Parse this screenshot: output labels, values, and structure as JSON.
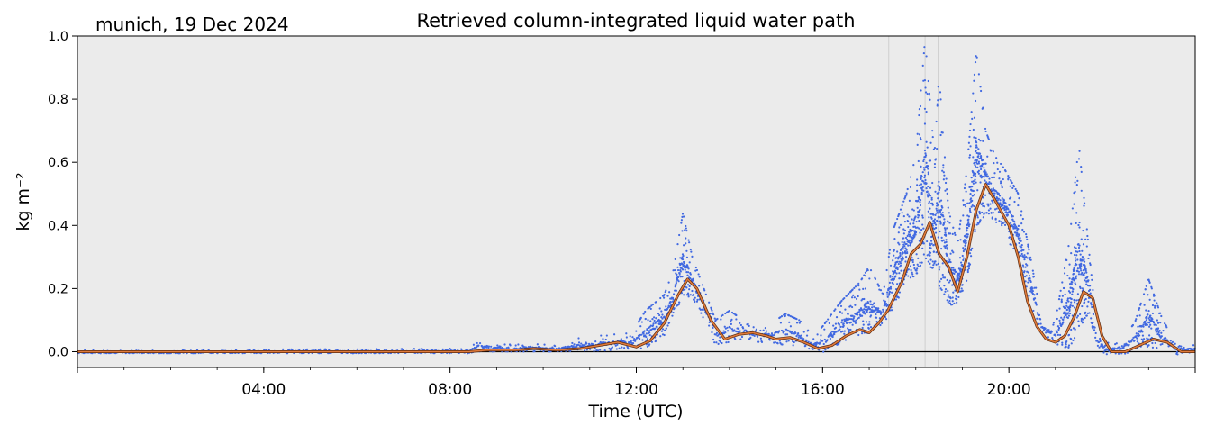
{
  "chart_data": {
    "type": "scatter",
    "title": "Retrieved column-integrated liquid water path",
    "location_label": "munich, 19 Dec 2024",
    "xlabel": "Time (UTC)",
    "ylabel": "kg m⁻²",
    "xlim": [
      0,
      24
    ],
    "ylim": [
      -0.05,
      1.0
    ],
    "x_unit": "hours UTC",
    "xticks": [
      {
        "value": 4,
        "label": "04:00"
      },
      {
        "value": 8,
        "label": "08:00"
      },
      {
        "value": 12,
        "label": "12:00"
      },
      {
        "value": 16,
        "label": "16:00"
      },
      {
        "value": 20,
        "label": "20:00"
      }
    ],
    "yticks": [
      {
        "value": 0.0,
        "label": "0.0"
      },
      {
        "value": 0.2,
        "label": "0.2"
      },
      {
        "value": 0.4,
        "label": "0.4"
      },
      {
        "value": 0.6,
        "label": "0.6"
      },
      {
        "value": 0.8,
        "label": "0.8"
      },
      {
        "value": 1.0,
        "label": "1.0"
      }
    ],
    "zero_line": 0.0,
    "background": "#ebebeb",
    "grid": false,
    "reference_vlines": [
      17.42,
      18.2,
      18.48
    ],
    "series": [
      {
        "style": "scatter",
        "color": "#4169e1",
        "envelope_low": {
          "x": [
            0,
            8.4,
            8.6,
            9.4,
            9.6,
            10.3,
            10.6,
            11.0,
            11.5,
            11.9,
            12.2,
            12.6,
            12.8,
            13.0,
            13.2,
            13.5,
            13.7,
            14.0,
            14.3,
            14.6,
            14.9,
            15.2,
            15.5,
            15.8,
            16.0,
            16.4,
            16.8,
            17.0,
            17.3,
            17.5,
            17.8,
            18.0,
            18.2,
            18.4,
            18.5,
            18.7,
            18.9,
            19.1,
            19.3,
            19.5,
            19.7,
            19.9,
            20.2,
            20.5,
            20.7,
            21.0,
            21.3,
            21.5,
            21.7,
            21.9,
            22.1,
            22.4,
            22.7,
            23.0,
            23.3,
            23.6,
            24.0
          ],
          "y": [
            -0.005,
            -0.005,
            0.0,
            0.0,
            0.0,
            0.0,
            0.0,
            0.0,
            0.005,
            0.01,
            0.01,
            0.05,
            0.11,
            0.18,
            0.17,
            0.09,
            0.02,
            0.03,
            0.04,
            0.03,
            0.03,
            0.02,
            0.015,
            0.0,
            -0.01,
            0.03,
            0.05,
            0.06,
            0.09,
            0.13,
            0.22,
            0.24,
            0.3,
            0.24,
            0.2,
            0.15,
            0.14,
            0.22,
            0.38,
            0.44,
            0.41,
            0.38,
            0.28,
            0.14,
            0.06,
            0.02,
            0.01,
            0.07,
            0.12,
            0.02,
            -0.015,
            -0.01,
            0.0,
            0.015,
            0.005,
            -0.01,
            0.0
          ]
        },
        "envelope_high": {
          "x": [
            0,
            8.4,
            8.6,
            9.4,
            9.6,
            10.3,
            10.6,
            11.0,
            11.5,
            11.9,
            12.2,
            12.6,
            12.8,
            13.0,
            13.2,
            13.5,
            13.7,
            14.0,
            14.3,
            14.6,
            14.9,
            15.2,
            15.5,
            15.8,
            16.0,
            16.4,
            16.8,
            17.0,
            17.3,
            17.5,
            17.8,
            18.0,
            18.2,
            18.4,
            18.5,
            18.7,
            18.9,
            19.1,
            19.3,
            19.5,
            19.7,
            19.9,
            20.2,
            20.5,
            20.7,
            21.0,
            21.3,
            21.5,
            21.7,
            21.9,
            22.1,
            22.4,
            22.7,
            23.0,
            23.3,
            23.6,
            24.0
          ],
          "y": [
            0.005,
            0.01,
            0.04,
            0.02,
            0.03,
            0.02,
            0.04,
            0.05,
            0.06,
            0.06,
            0.13,
            0.18,
            0.26,
            0.44,
            0.3,
            0.18,
            0.1,
            0.13,
            0.1,
            0.08,
            0.09,
            0.12,
            0.1,
            0.05,
            0.08,
            0.16,
            0.22,
            0.27,
            0.18,
            0.38,
            0.5,
            0.62,
            0.99,
            0.62,
            0.88,
            0.45,
            0.34,
            0.58,
            0.95,
            0.7,
            0.62,
            0.58,
            0.5,
            0.27,
            0.1,
            0.1,
            0.35,
            0.66,
            0.35,
            0.05,
            0.03,
            0.04,
            0.09,
            0.23,
            0.1,
            0.03,
            0.02
          ]
        }
      },
      {
        "style": "line",
        "color": "#e07a3a",
        "x": [
          0,
          8.4,
          8.8,
          9.4,
          9.8,
          10.3,
          10.8,
          11.2,
          11.6,
          12.0,
          12.3,
          12.6,
          12.9,
          13.1,
          13.3,
          13.6,
          13.9,
          14.2,
          14.5,
          14.8,
          15.0,
          15.3,
          15.6,
          15.9,
          16.2,
          16.5,
          16.8,
          17.0,
          17.2,
          17.4,
          17.7,
          17.9,
          18.1,
          18.3,
          18.5,
          18.7,
          18.9,
          19.1,
          19.3,
          19.5,
          19.7,
          20.0,
          20.2,
          20.4,
          20.6,
          20.8,
          21.0,
          21.2,
          21.4,
          21.6,
          21.8,
          22.0,
          22.2,
          22.5,
          22.8,
          23.1,
          23.4,
          23.7,
          24.0
        ],
        "y": [
          0.0,
          0.0,
          0.005,
          0.005,
          0.01,
          0.005,
          0.01,
          0.02,
          0.03,
          0.015,
          0.035,
          0.09,
          0.18,
          0.23,
          0.2,
          0.1,
          0.04,
          0.055,
          0.06,
          0.05,
          0.04,
          0.045,
          0.03,
          0.01,
          0.02,
          0.05,
          0.07,
          0.06,
          0.09,
          0.13,
          0.22,
          0.31,
          0.34,
          0.41,
          0.31,
          0.27,
          0.19,
          0.3,
          0.45,
          0.53,
          0.48,
          0.4,
          0.3,
          0.16,
          0.08,
          0.04,
          0.03,
          0.05,
          0.11,
          0.19,
          0.17,
          0.05,
          0.0,
          0.0,
          0.02,
          0.04,
          0.03,
          0.0,
          0.0
        ]
      }
    ]
  }
}
